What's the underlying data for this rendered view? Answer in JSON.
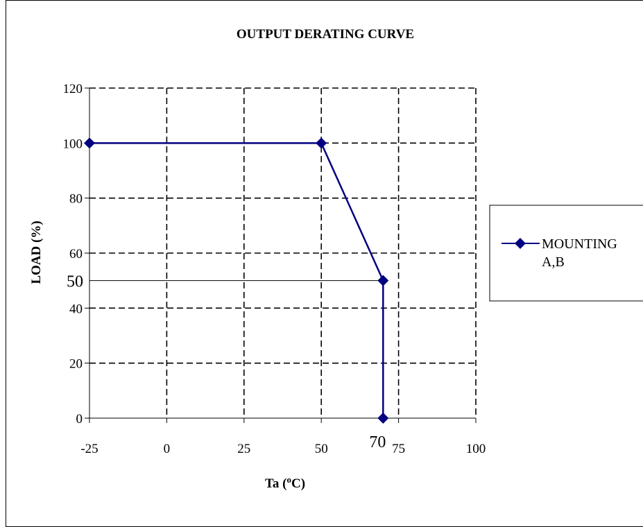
{
  "chart_data": {
    "type": "line",
    "title": "OUTPUT DERATING CURVE",
    "xlabel": {
      "main": "Ta (",
      "sup": "o",
      "unit": "C)"
    },
    "ylabel": "LOAD (%)",
    "xlim": [
      -25,
      100
    ],
    "ylim": [
      0,
      120
    ],
    "x_ticks": [
      -25,
      0,
      25,
      50,
      75,
      100
    ],
    "y_ticks": [
      0,
      20,
      40,
      60,
      80,
      100,
      120
    ],
    "extra_x_ticks": [
      70
    ],
    "extra_y_ticks": [
      50
    ],
    "grid": true,
    "legend_position": "right",
    "series": [
      {
        "name": "MOUNTING A,B",
        "legend_lines": [
          "MOUNTING",
          "A,B"
        ],
        "color": "#000080",
        "marker": "diamond",
        "points": [
          {
            "x": -25,
            "y": 100
          },
          {
            "x": 50,
            "y": 100
          },
          {
            "x": 70,
            "y": 50
          },
          {
            "x": 70,
            "y": 0
          }
        ]
      }
    ],
    "reference_lines": [
      {
        "from": {
          "x": -25,
          "y": 50
        },
        "to": {
          "x": 70,
          "y": 50
        }
      }
    ]
  }
}
